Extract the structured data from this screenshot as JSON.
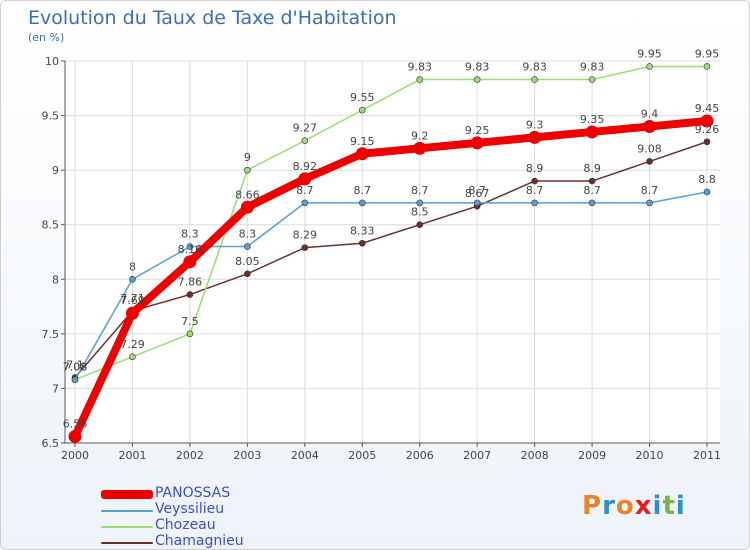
{
  "header": {
    "title": "Evolution du Taux de Taxe d'Habitation",
    "subtitle": "(en %)"
  },
  "logo": {
    "text": "Proxiti",
    "colors": [
      "#e8832a",
      "#2d8fd8",
      "#e8832a",
      "#e02020",
      "#2d8fd8",
      "#7cb342",
      "#2d8fd8"
    ]
  },
  "chart_data": {
    "type": "line",
    "x": [
      "2000",
      "2001",
      "2002",
      "2003",
      "2004",
      "2005",
      "2006",
      "2007",
      "2008",
      "2009",
      "2010",
      "2011"
    ],
    "ylim": [
      6.5,
      10
    ],
    "yticks": [
      "6.5",
      "7",
      "7.5",
      "8",
      "8.5",
      "9",
      "9.5",
      "10"
    ],
    "grid": true,
    "legend_position": "bottom-left",
    "series": [
      {
        "name": "PANOSSAS",
        "color": "#ee0000",
        "values": [
          6.56,
          7.69,
          8.16,
          8.66,
          8.92,
          9.15,
          9.2,
          9.25,
          9.3,
          9.35,
          9.4,
          9.45
        ],
        "labels": [
          "6.56",
          "7.69",
          "8.16",
          "8.66",
          "8.92",
          "9.15",
          "9.2",
          "9.25",
          "9.3",
          "9.35",
          "9.4",
          "9.45"
        ]
      },
      {
        "name": "Veyssilieu",
        "color": "#5b9fd0",
        "values": [
          7.08,
          8,
          8.3,
          8.3,
          8.7,
          8.7,
          8.7,
          8.7,
          8.7,
          8.7,
          8.7,
          8.8
        ],
        "labels": [
          "7.08",
          "8",
          "8.3",
          "8.3",
          "8.7",
          "8.7",
          "8.7",
          "8.7",
          "8.7",
          "8.7",
          "8.7",
          "8.8"
        ]
      },
      {
        "name": "Chozeau",
        "color": "#99dd77",
        "values": [
          7.08,
          7.29,
          7.5,
          9,
          9.27,
          9.55,
          9.83,
          9.83,
          9.83,
          9.83,
          9.95,
          9.95
        ],
        "labels": [
          "7.08",
          "7.29",
          "7.5",
          "9",
          "9.27",
          "9.55",
          "9.83",
          "9.83",
          "9.83",
          "9.83",
          "9.95",
          "9.95"
        ]
      },
      {
        "name": "Chamagnieu",
        "color": "#6b2f2f",
        "values": [
          7.1,
          7.71,
          7.86,
          8.05,
          8.29,
          8.33,
          8.5,
          8.67,
          8.9,
          8.9,
          9.08,
          9.26
        ],
        "labels": [
          "7.1",
          "7.71",
          "7.86",
          "8.05",
          "8.29",
          "8.33",
          "8.5",
          "8.67",
          "8.9",
          "8.9",
          "9.08",
          "9.26"
        ]
      }
    ]
  }
}
